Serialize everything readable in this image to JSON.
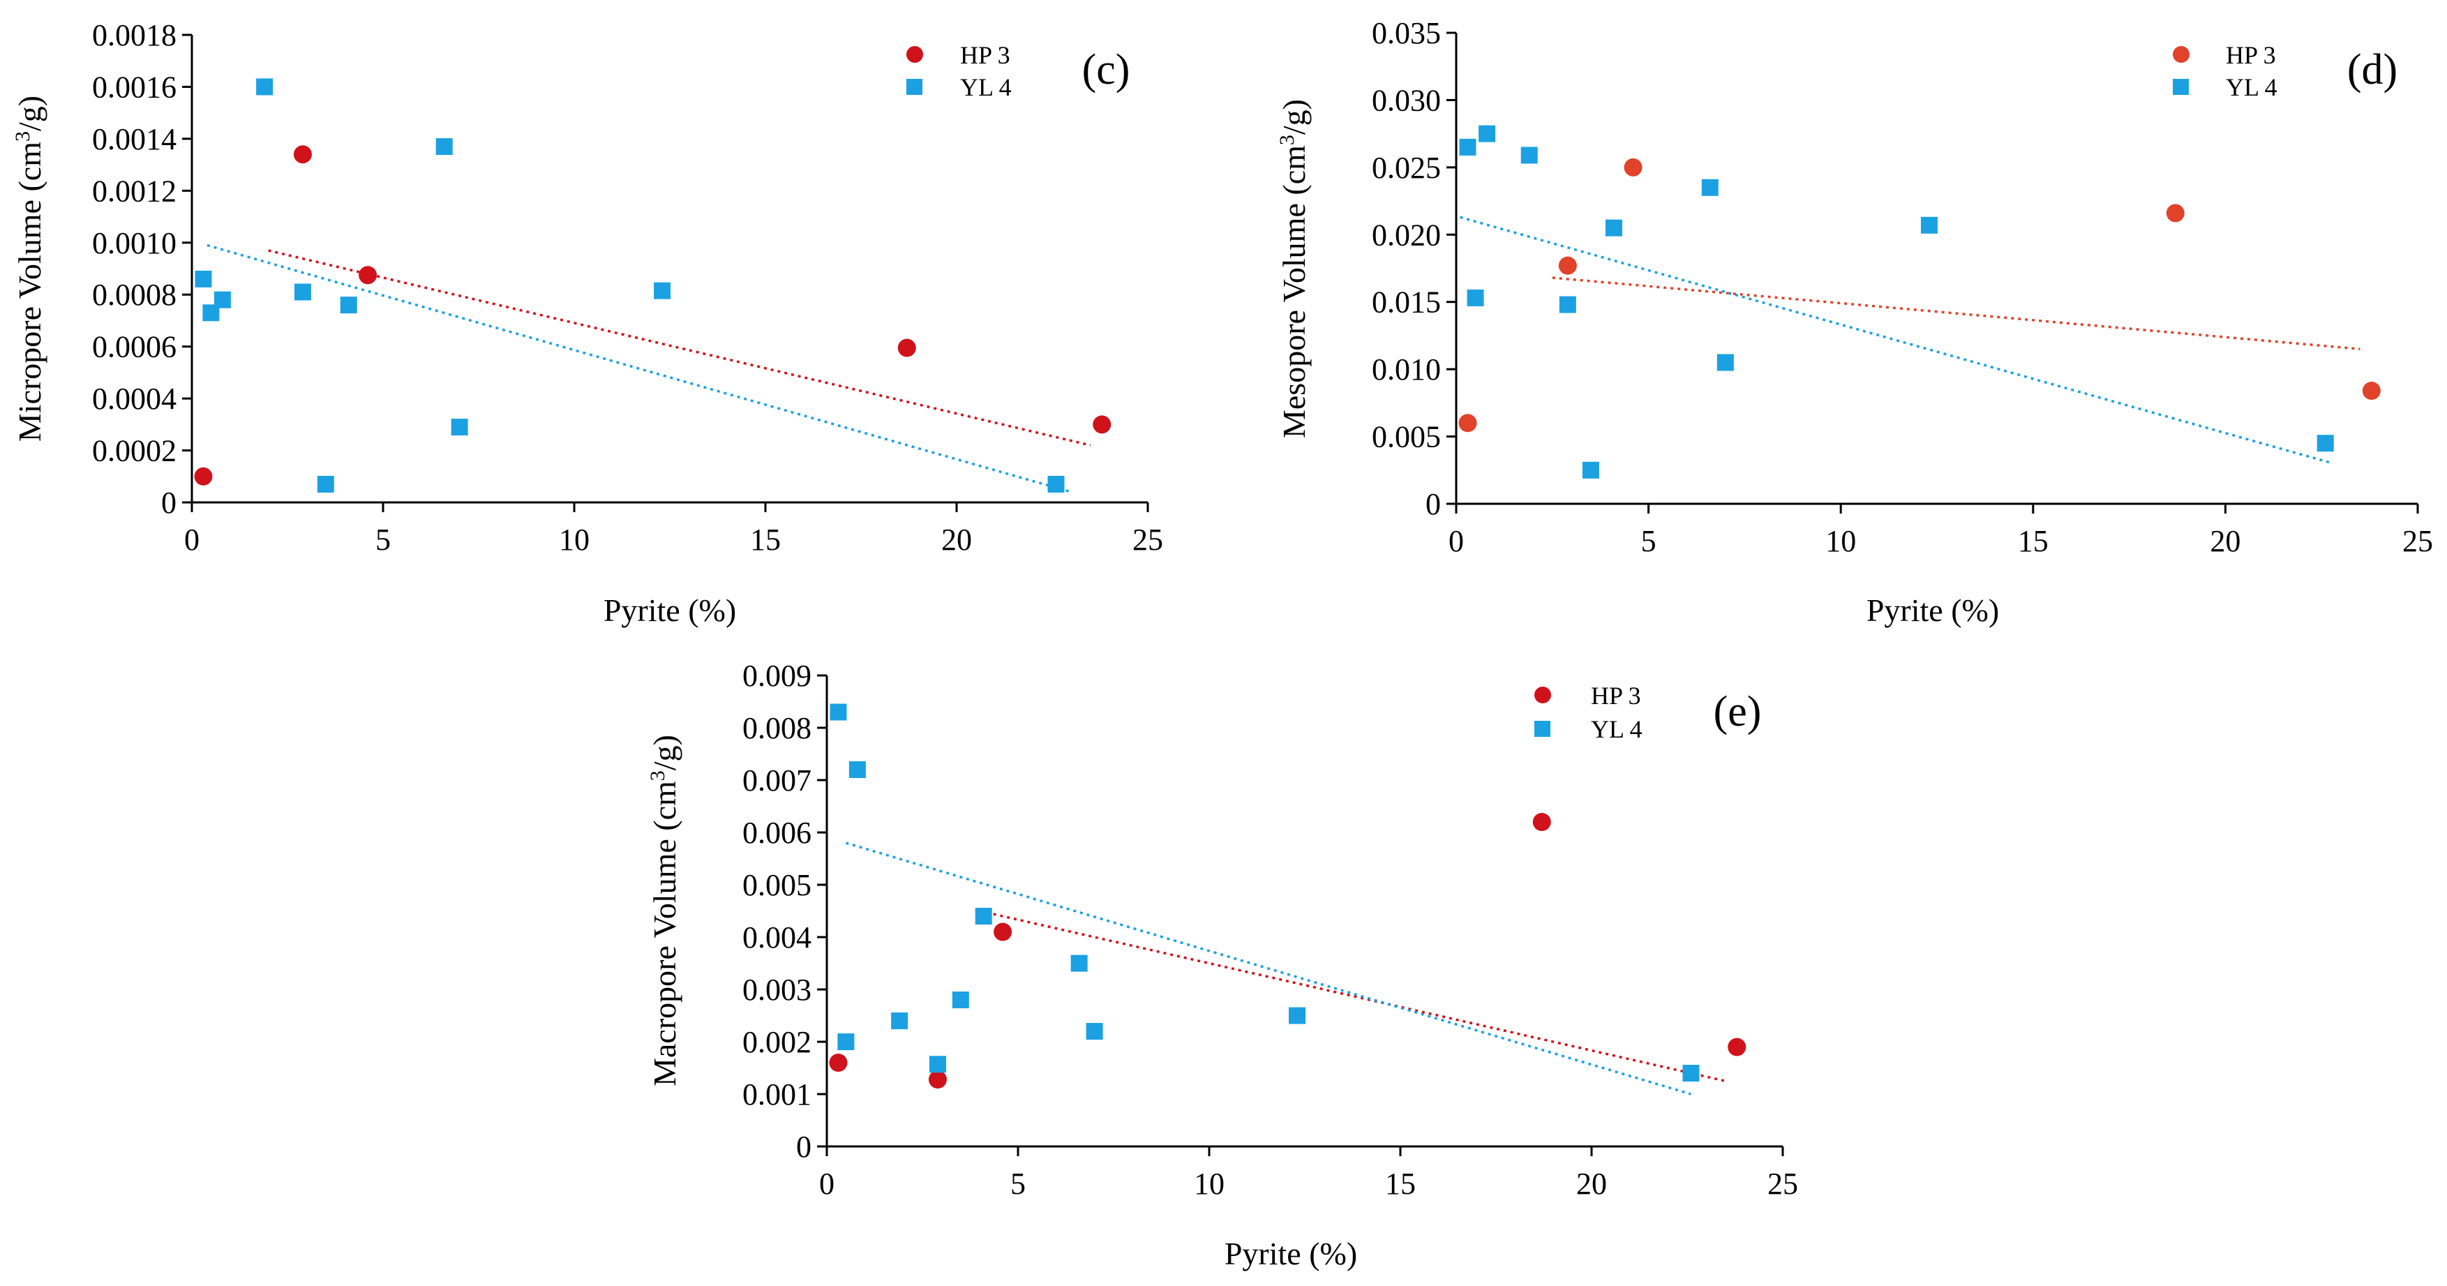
{
  "colors": {
    "hp3": "#d0121b",
    "yl4": "#1ba1e2",
    "hp3_trend": "#e0432a",
    "yl4_trend": "#1ba1e2"
  },
  "chart_data": [
    {
      "id": "c",
      "type": "scatter",
      "panel_label": "(c)",
      "xlabel": "Pyrite (%)",
      "ylabel": "Micropore Volume (cm³/g)",
      "xlim": [
        0,
        25
      ],
      "ylim": [
        0,
        0.0018
      ],
      "xticks": [
        0,
        5,
        10,
        15,
        20,
        25
      ],
      "xtick_labels": [
        "0",
        "5",
        "10",
        "15",
        "20",
        "25"
      ],
      "yticks": [
        0,
        0.0002,
        0.0004,
        0.0006,
        0.0008,
        0.001,
        0.0012,
        0.0014,
        0.0016,
        0.0018
      ],
      "ytick_labels": [
        "0",
        "0.0002",
        "0.0004",
        "0.0006",
        "0.0008",
        "0.0010",
        "0.0012",
        "0.0014",
        "0.0016",
        "0.0018"
      ],
      "legend_position": "top-right",
      "series": [
        {
          "name": "HP 3",
          "marker": "circle",
          "color": "#d0121b",
          "points": [
            [
              0.3,
              0.0001
            ],
            [
              2.9,
              0.00134
            ],
            [
              4.6,
              0.000875
            ],
            [
              18.7,
              0.000595
            ],
            [
              23.8,
              0.0003
            ]
          ],
          "trend": [
            [
              2.0,
              0.00097
            ],
            [
              23.5,
              0.00022
            ]
          ]
        },
        {
          "name": "YL 4",
          "marker": "square",
          "color": "#1ba1e2",
          "points": [
            [
              0.3,
              0.00086
            ],
            [
              0.5,
              0.00073
            ],
            [
              0.8,
              0.00078
            ],
            [
              1.9,
              0.0016
            ],
            [
              2.9,
              0.00081
            ],
            [
              3.5,
              7e-05
            ],
            [
              4.1,
              0.00076
            ],
            [
              6.6,
              0.00137
            ],
            [
              7.0,
              0.00029
            ],
            [
              12.3,
              0.000815
            ],
            [
              22.6,
              7e-05
            ]
          ],
          "trend": [
            [
              0.4,
              0.00099
            ],
            [
              23.0,
              4e-05
            ]
          ]
        }
      ]
    },
    {
      "id": "d",
      "type": "scatter",
      "panel_label": "(d)",
      "xlabel": "Pyrite (%)",
      "ylabel": "Mesopore Volume (cm³/g)",
      "xlim": [
        0,
        25
      ],
      "ylim": [
        0,
        0.035
      ],
      "xticks": [
        0,
        5,
        10,
        15,
        20,
        25
      ],
      "xtick_labels": [
        "0",
        "5",
        "10",
        "15",
        "20",
        "25"
      ],
      "yticks": [
        0,
        0.005,
        0.01,
        0.015,
        0.02,
        0.025,
        0.03,
        0.035
      ],
      "ytick_labels": [
        "0",
        "0.005",
        "0.010",
        "0.015",
        "0.020",
        "0.025",
        "0.030",
        "0.035"
      ],
      "legend_position": "top-right",
      "series": [
        {
          "name": "HP 3",
          "marker": "circle",
          "color": "#e0432a",
          "points": [
            [
              0.3,
              0.006
            ],
            [
              2.9,
              0.0177
            ],
            [
              4.6,
              0.025
            ],
            [
              18.7,
              0.0216
            ],
            [
              23.8,
              0.0084
            ]
          ],
          "trend": [
            [
              2.5,
              0.0168
            ],
            [
              23.5,
              0.0115
            ]
          ]
        },
        {
          "name": "YL 4",
          "marker": "square",
          "color": "#1ba1e2",
          "points": [
            [
              0.3,
              0.0265
            ],
            [
              0.5,
              0.0153
            ],
            [
              0.8,
              0.0275
            ],
            [
              1.9,
              0.0259
            ],
            [
              2.9,
              0.0148
            ],
            [
              3.5,
              0.0025
            ],
            [
              4.1,
              0.0205
            ],
            [
              6.6,
              0.0235
            ],
            [
              7.0,
              0.0105
            ],
            [
              12.3,
              0.0207
            ],
            [
              22.6,
              0.0045
            ]
          ],
          "trend": [
            [
              0.1,
              0.0213
            ],
            [
              22.8,
              0.003
            ]
          ]
        }
      ]
    },
    {
      "id": "e",
      "type": "scatter",
      "panel_label": "(e)",
      "xlabel": "Pyrite (%)",
      "ylabel": "Macropore Volume (cm³/g)",
      "xlim": [
        0,
        25
      ],
      "ylim": [
        0,
        0.009
      ],
      "xticks": [
        0,
        5,
        10,
        15,
        20,
        25
      ],
      "xtick_labels": [
        "0",
        "5",
        "10",
        "15",
        "20",
        "25"
      ],
      "yticks": [
        0,
        0.001,
        0.002,
        0.003,
        0.004,
        0.005,
        0.006,
        0.007,
        0.008,
        0.009
      ],
      "ytick_labels": [
        "0",
        "0.001",
        "0.002",
        "0.003",
        "0.004",
        "0.005",
        "0.006",
        "0.007",
        "0.008",
        "0.009"
      ],
      "legend_position": "top-right",
      "series": [
        {
          "name": "HP 3",
          "marker": "circle",
          "color": "#d0121b",
          "points": [
            [
              0.3,
              0.0016
            ],
            [
              2.9,
              0.00128
            ],
            [
              4.6,
              0.0041
            ],
            [
              18.7,
              0.0062
            ],
            [
              23.8,
              0.0019
            ]
          ],
          "trend": [
            [
              4.0,
              0.0045
            ],
            [
              23.5,
              0.00125
            ]
          ]
        },
        {
          "name": "YL 4",
          "marker": "square",
          "color": "#1ba1e2",
          "points": [
            [
              0.3,
              0.0083
            ],
            [
              0.5,
              0.002
            ],
            [
              0.8,
              0.0072
            ],
            [
              1.9,
              0.0024
            ],
            [
              2.9,
              0.00157
            ],
            [
              3.5,
              0.0028
            ],
            [
              4.1,
              0.0044
            ],
            [
              6.6,
              0.0035
            ],
            [
              7.0,
              0.0022
            ],
            [
              12.3,
              0.0025
            ],
            [
              22.6,
              0.0014
            ]
          ],
          "trend": [
            [
              0.5,
              0.0058
            ],
            [
              22.6,
              0.001
            ]
          ]
        }
      ]
    }
  ]
}
